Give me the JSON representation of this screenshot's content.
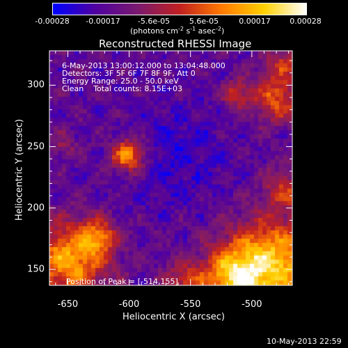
{
  "colorbar": {
    "ticks": [
      "-0.00028",
      "-0.00017",
      "-5.6e-05",
      "5.6e-05",
      "0.00017",
      "0.00028"
    ],
    "tick_values": [
      -0.00028,
      -0.00017,
      -5.6e-05,
      5.6e-05,
      0.00017,
      0.00028
    ],
    "unit_prefix": "(photons cm",
    "unit_exp1": "-2",
    "unit_mid": " s",
    "unit_exp2": "-1",
    "unit_mid2": " asec",
    "unit_exp3": "-2",
    "unit_suffix": ")",
    "colormap": [
      "#0000ff",
      "#5000a0",
      "#7a1a70",
      "#c02020",
      "#ff7a00",
      "#ffd000",
      "#ffffff"
    ]
  },
  "chart_data": {
    "type": "heatmap",
    "title": "Reconstructed RHESSI Image",
    "xlabel": "Heliocentric X (arcsec)",
    "ylabel": "Heliocentric Y (arcsec)",
    "xlim": [
      -665,
      -467
    ],
    "ylim": [
      137,
      328
    ],
    "x_ticks": [
      -650,
      -600,
      -550,
      -500
    ],
    "y_ticks": [
      150,
      200,
      250,
      300
    ],
    "x_tick_labels": [
      "-650",
      "-600",
      "-550",
      "-500"
    ],
    "y_tick_labels": [
      "150",
      "200",
      "250",
      "300"
    ],
    "peak_position": [
      -514,
      155
    ],
    "annotations": {
      "line1": "6-May-2013 13:00:12.000 to 13:04:48.000",
      "line2": "Detectors: 3F 5F 6F 7F 8F 9F, Att 0",
      "line3": "Energy Range: 25.0 - 50.0 keV",
      "line4": "Clean    Total counts: 8.15E+03",
      "peak": "Position of Peak = [-514,155]"
    }
  },
  "timestamp": "10-May-2013 22:59"
}
